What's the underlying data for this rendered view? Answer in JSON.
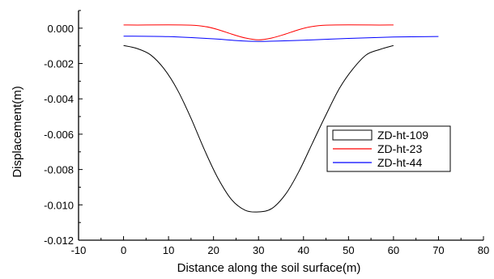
{
  "chart_data": {
    "type": "line",
    "xlabel": "Distance along the soil surface(m)",
    "ylabel": "Displacement(m)",
    "xlim": [
      -10,
      80
    ],
    "ylim": [
      -0.012,
      0.001
    ],
    "xticks": [
      -10,
      0,
      10,
      20,
      30,
      40,
      50,
      60,
      70,
      80
    ],
    "xtick_labels": [
      "-10",
      "0",
      "10",
      "20",
      "30",
      "40",
      "50",
      "60",
      "70",
      "80"
    ],
    "yticks": [
      0.0,
      -0.002,
      -0.004,
      -0.006,
      -0.008,
      -0.01,
      -0.012
    ],
    "ytick_labels": [
      "0.000",
      "-0.002",
      "-0.004",
      "-0.006",
      "-0.008",
      "-0.010",
      "-0.012"
    ],
    "legend_position": "right",
    "grid": false,
    "series": [
      {
        "name": "ZD-ht-109",
        "color": "#000000",
        "legend_style": "box",
        "x": [
          0,
          3,
          6,
          9,
          12,
          15,
          18,
          21,
          24,
          27,
          30,
          33,
          36,
          39,
          42,
          45,
          48,
          51,
          54,
          57,
          60
        ],
        "y": [
          -0.00098,
          -0.00115,
          -0.00151,
          -0.0023,
          -0.0035,
          -0.0051,
          -0.0069,
          -0.0085,
          -0.0097,
          -0.0103,
          -0.0104,
          -0.0102,
          -0.0094,
          -0.0081,
          -0.0065,
          -0.0049,
          -0.0034,
          -0.0023,
          -0.0015,
          -0.0012,
          -0.00098
        ]
      },
      {
        "name": "ZD-ht-23",
        "color": "#ff0000",
        "legend_style": "line",
        "x": [
          0,
          5,
          10,
          15,
          18,
          21,
          24,
          27,
          30,
          33,
          36,
          39,
          42,
          45,
          50,
          55,
          60
        ],
        "y": [
          0.00018,
          0.00018,
          0.00019,
          0.00017,
          0.0001,
          -8e-05,
          -0.00033,
          -0.00055,
          -0.00066,
          -0.00055,
          -0.00033,
          -8e-05,
          0.0001,
          0.00017,
          0.00019,
          0.00018,
          0.00018
        ]
      },
      {
        "name": "ZD-ht-44",
        "color": "#0000ff",
        "legend_style": "line",
        "x": [
          0,
          10,
          20,
          25,
          30,
          35,
          40,
          50,
          60,
          70
        ],
        "y": [
          -0.00045,
          -0.00048,
          -0.0006,
          -0.0007,
          -0.00075,
          -0.00072,
          -0.00068,
          -0.00058,
          -0.0005,
          -0.00047
        ]
      }
    ]
  }
}
